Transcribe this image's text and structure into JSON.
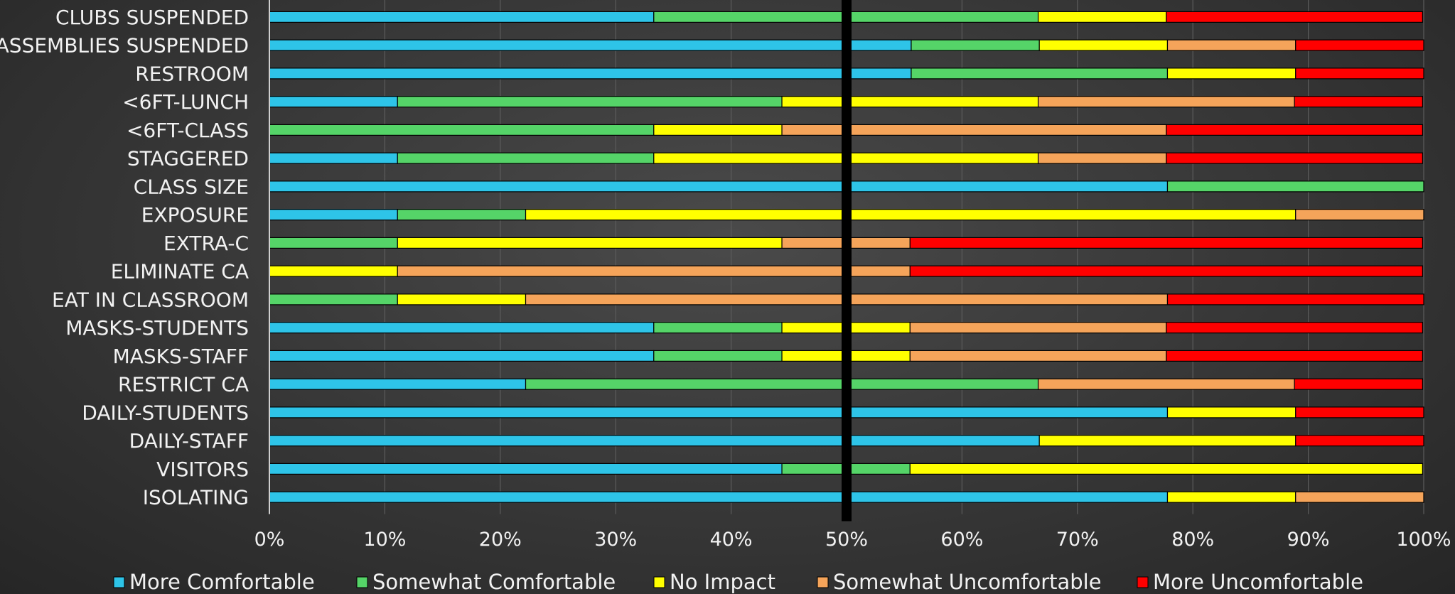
{
  "chart_data": {
    "type": "bar",
    "orientation": "horizontal",
    "stacked": "percent",
    "title": "",
    "xlabel": "",
    "ylabel": "",
    "xlim": [
      0,
      100
    ],
    "x_ticks": [
      "0%",
      "10%",
      "20%",
      "30%",
      "40%",
      "50%",
      "60%",
      "70%",
      "80%",
      "90%",
      "100%"
    ],
    "grid": true,
    "legend_position": "bottom",
    "reference_line": {
      "value": 50,
      "color": "#000000"
    },
    "categories": [
      "CLUBS SUSPENDED",
      "ASSEMBLIES SUSPENDED",
      "RESTROOM",
      "<6FT-LUNCH",
      "<6FT-CLASS",
      "STAGGERED",
      "CLASS SIZE",
      "EXPOSURE",
      "EXTRA-C",
      "ELIMINATE CA",
      "EAT IN CLASSROOM",
      "MASKS-STUDENTS",
      "MASKS-STAFF",
      "RESTRICT CA",
      "DAILY-STUDENTS",
      "DAILY-STAFF",
      "VISITORS",
      "ISOLATING"
    ],
    "series": [
      {
        "name": "More Comfortable",
        "color": "#2ec4e8",
        "values": [
          33.3,
          55.6,
          55.6,
          11.1,
          0,
          11.1,
          77.8,
          11.1,
          0,
          0,
          0,
          33.3,
          33.3,
          22.2,
          77.8,
          66.7,
          44.4,
          77.8
        ]
      },
      {
        "name": "Somewhat Comfortable",
        "color": "#55d468",
        "values": [
          33.3,
          11.1,
          22.2,
          33.3,
          33.3,
          22.2,
          22.2,
          11.1,
          11.1,
          0,
          11.1,
          11.1,
          11.1,
          44.4,
          0,
          0,
          11.1,
          0
        ]
      },
      {
        "name": "No Impact",
        "color": "#ffff00",
        "values": [
          11.1,
          11.1,
          11.1,
          22.2,
          11.1,
          33.3,
          0,
          66.7,
          33.3,
          11.1,
          11.1,
          11.1,
          11.1,
          0,
          11.1,
          22.2,
          44.4,
          11.1
        ]
      },
      {
        "name": "Somewhat Uncomfortable",
        "color": "#f5a45a",
        "values": [
          0,
          11.1,
          0,
          22.2,
          33.3,
          11.1,
          0,
          11.1,
          11.1,
          44.4,
          55.6,
          22.2,
          22.2,
          22.2,
          0,
          0,
          0,
          11.1
        ]
      },
      {
        "name": "More Uncomfortable",
        "color": "#ff0000",
        "values": [
          22.2,
          11.1,
          11.1,
          11.1,
          22.2,
          22.2,
          0,
          0,
          44.4,
          44.4,
          22.2,
          22.2,
          22.2,
          11.1,
          11.1,
          11.1,
          0,
          0
        ]
      }
    ]
  }
}
